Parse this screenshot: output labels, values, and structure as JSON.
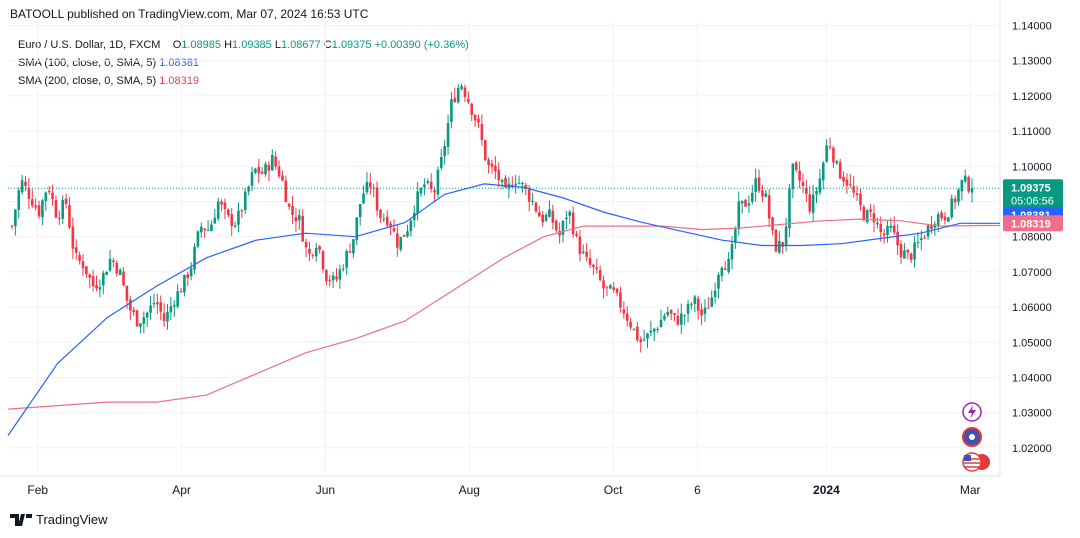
{
  "publisher_line": "BATOOLL published on TradingView.com, Mar 07, 2024 16:53 UTC",
  "legend": {
    "symbol": "Euro / U.S. Dollar, 1D, FXCM",
    "o_label": "O",
    "o": "1.08985",
    "h_label": "H",
    "h": "1.09385",
    "l_label": "L",
    "l": "1.08677",
    "c_label": "C",
    "c": "1.09375",
    "change": "+0.00390 (+0.36%)",
    "sma100_label": "SMA (100, close, 0, SMA, 5)",
    "sma100_value": "1.08381",
    "sma200_label": "SMA (200, close, 0, SMA, 5)",
    "sma200_value": "1.08319"
  },
  "price_tag": {
    "value": "1.09375",
    "countdown": "05:06:56"
  },
  "sma100_tag": "1.08381",
  "sma200_tag": "1.08319",
  "footer_brand": "TradingView",
  "icons": [
    "lightning-icon",
    "calendar-event-icon",
    "us-flag-icon"
  ],
  "colors": {
    "up": "#089981",
    "down": "#f23645",
    "sma100": "#2962ff",
    "sma200": "#f06e8a",
    "price_line": "#089981"
  },
  "chart_data": {
    "type": "candlestick",
    "ylim": [
      1.012,
      1.141
    ],
    "y_ticks": [
      "1.14000",
      "1.13000",
      "1.12000",
      "1.11000",
      "1.10000",
      "1.09000",
      "1.08000",
      "1.07000",
      "1.06000",
      "1.05000",
      "1.04000",
      "1.03000",
      "1.02000"
    ],
    "x_ticks": [
      "Feb",
      "Apr",
      "Jun",
      "Aug",
      "Oct",
      "6",
      "2024",
      "Mar"
    ],
    "last_close": 1.09375,
    "price_path": [
      [
        1.083,
        1.096
      ],
      [
        1.0915,
        1.087
      ],
      [
        1.095,
        1.086
      ],
      [
        1.09,
        1.074
      ],
      [
        1.072,
        1.066
      ],
      [
        1.068,
        1.074
      ],
      [
        1.07,
        1.06
      ],
      [
        1.056,
        1.058
      ],
      [
        1.062,
        1.056
      ],
      [
        1.062,
        1.066
      ],
      [
        1.072,
        1.083
      ],
      [
        1.082,
        1.09
      ],
      [
        1.085,
        1.084
      ],
      [
        1.091,
        1.099
      ],
      [
        1.098,
        1.102
      ],
      [
        1.097,
        1.087
      ],
      [
        1.085,
        1.074
      ],
      [
        1.079,
        1.069
      ],
      [
        1.067,
        1.073
      ],
      [
        1.079,
        1.092
      ],
      [
        1.095,
        1.086
      ],
      [
        1.085,
        1.078
      ],
      [
        1.082,
        1.09
      ],
      [
        1.095,
        1.092
      ],
      [
        1.103,
        1.118
      ],
      [
        1.124,
        1.118
      ],
      [
        1.111,
        1.1
      ],
      [
        1.098,
        1.092
      ],
      [
        1.097,
        1.094
      ],
      [
        1.09,
        1.085
      ],
      [
        1.086,
        1.08
      ],
      [
        1.088,
        1.078
      ],
      [
        1.073,
        1.07
      ],
      [
        1.065,
        1.064
      ],
      [
        1.06,
        1.055
      ],
      [
        1.05,
        1.052
      ],
      [
        1.055,
        1.059
      ],
      [
        1.056,
        1.058
      ],
      [
        1.062,
        1.057
      ],
      [
        1.063,
        1.073
      ],
      [
        1.072,
        1.088
      ],
      [
        1.09,
        1.096
      ],
      [
        1.091,
        1.077
      ],
      [
        1.078,
        1.099
      ],
      [
        1.095,
        1.088
      ],
      [
        1.096,
        1.108
      ],
      [
        1.099,
        1.096
      ],
      [
        1.091,
        1.086
      ],
      [
        1.086,
        1.08
      ],
      [
        1.082,
        1.076
      ],
      [
        1.074,
        1.078
      ],
      [
        1.082,
        1.086
      ],
      [
        1.086,
        1.09
      ],
      [
        1.096,
        1.09375
      ]
    ],
    "sma100": [
      [
        0,
        1.0235
      ],
      [
        0.05,
        1.044
      ],
      [
        0.1,
        1.057
      ],
      [
        0.15,
        1.066
      ],
      [
        0.2,
        1.074
      ],
      [
        0.25,
        1.079
      ],
      [
        0.3,
        1.081
      ],
      [
        0.35,
        1.08
      ],
      [
        0.4,
        1.084
      ],
      [
        0.44,
        1.092
      ],
      [
        0.48,
        1.095
      ],
      [
        0.52,
        1.094
      ],
      [
        0.56,
        1.091
      ],
      [
        0.6,
        1.087
      ],
      [
        0.64,
        1.084
      ],
      [
        0.68,
        1.0815
      ],
      [
        0.72,
        1.079
      ],
      [
        0.76,
        1.0775
      ],
      [
        0.8,
        1.0775
      ],
      [
        0.84,
        1.078
      ],
      [
        0.88,
        1.0795
      ],
      [
        0.92,
        1.081
      ],
      [
        0.96,
        1.08381
      ],
      [
        1.0,
        1.08381
      ]
    ],
    "sma200": [
      [
        0,
        1.031
      ],
      [
        0.05,
        1.032
      ],
      [
        0.1,
        1.033
      ],
      [
        0.15,
        1.033
      ],
      [
        0.2,
        1.035
      ],
      [
        0.25,
        1.041
      ],
      [
        0.3,
        1.047
      ],
      [
        0.35,
        1.051
      ],
      [
        0.4,
        1.056
      ],
      [
        0.45,
        1.065
      ],
      [
        0.5,
        1.074
      ],
      [
        0.54,
        1.08
      ],
      [
        0.58,
        1.083
      ],
      [
        0.62,
        1.083
      ],
      [
        0.66,
        1.083
      ],
      [
        0.7,
        1.082
      ],
      [
        0.74,
        1.0825
      ],
      [
        0.78,
        1.0835
      ],
      [
        0.82,
        1.0845
      ],
      [
        0.86,
        1.085
      ],
      [
        0.9,
        1.0845
      ],
      [
        0.94,
        1.083
      ],
      [
        0.98,
        1.08319
      ],
      [
        1.0,
        1.08319
      ]
    ]
  }
}
